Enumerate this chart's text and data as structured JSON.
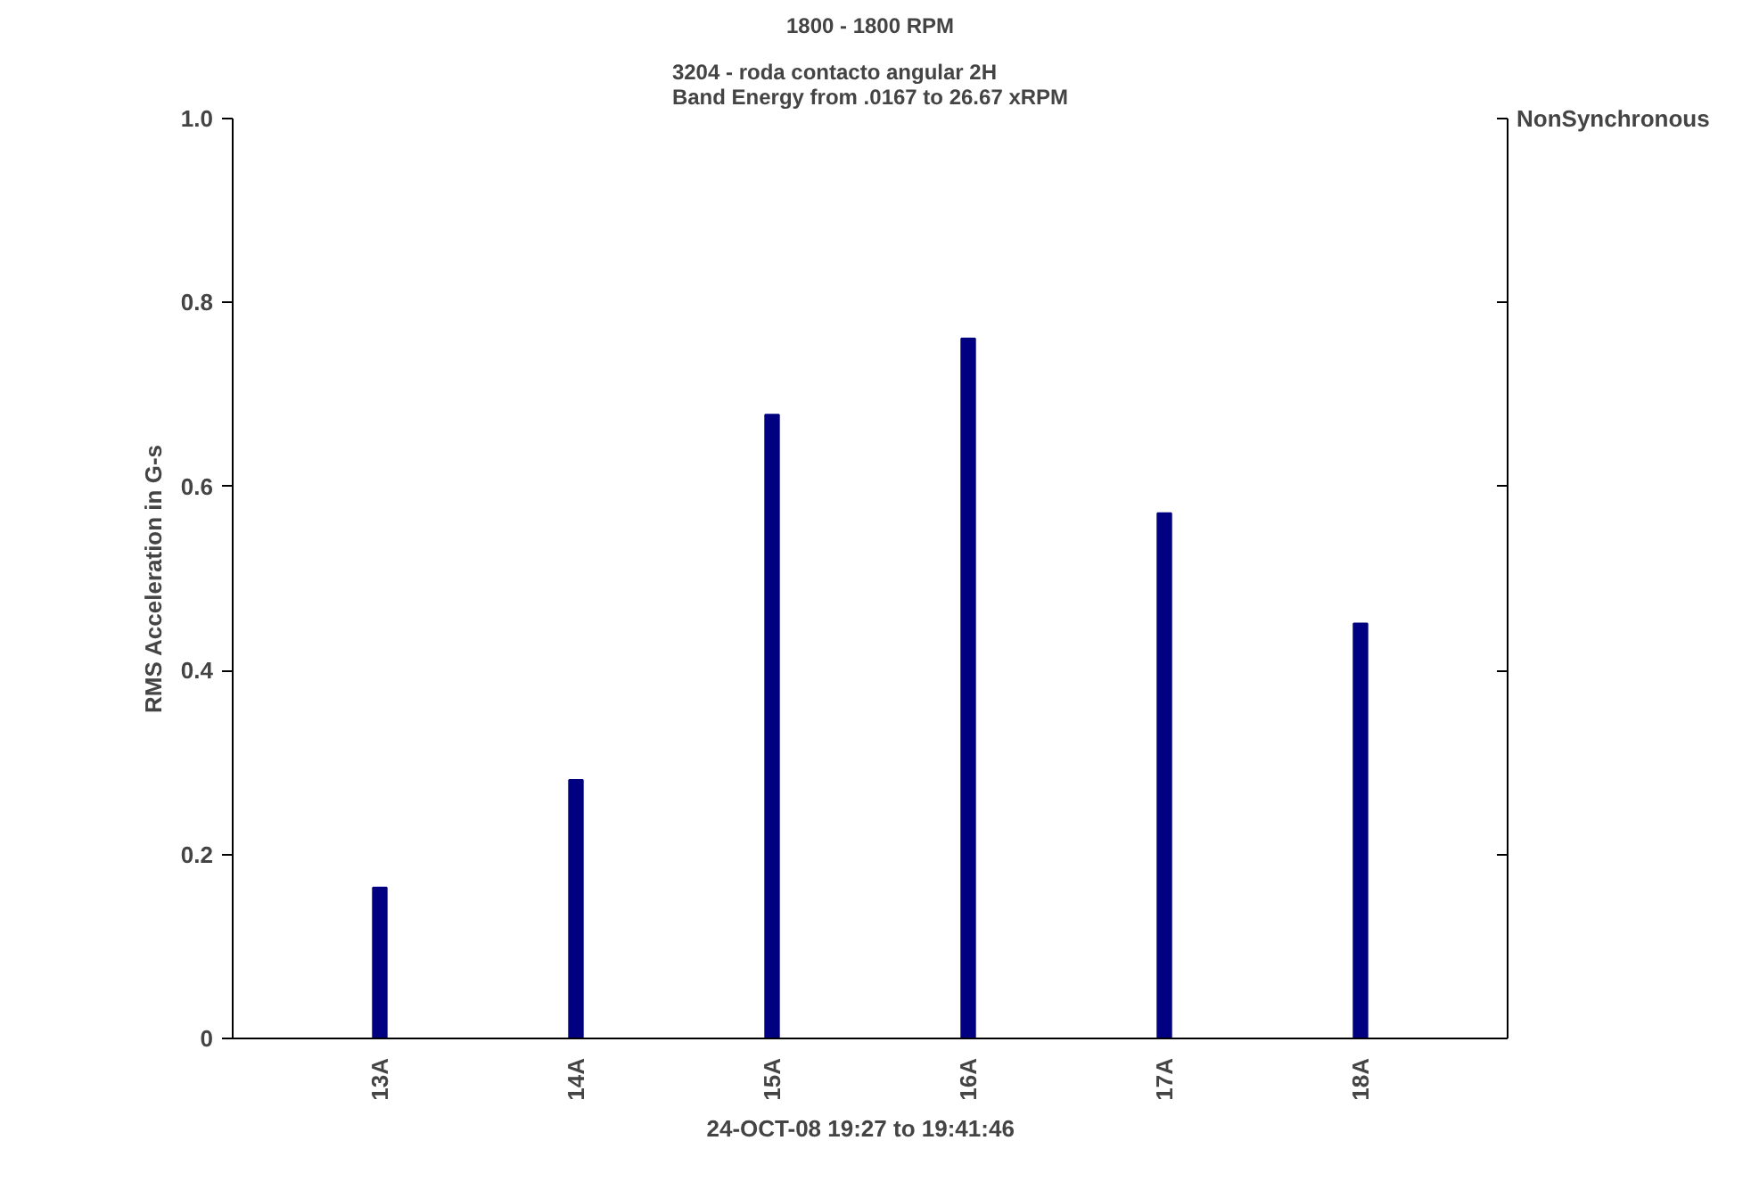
{
  "chart_data": {
    "type": "bar",
    "title": "1800 - 1800 RPM",
    "subtitle": "3204 - roda contacto angular 2H\nBand Energy from .0167 to 26.67 xRPM",
    "xlabel": "24-OCT-08  19:27  to  19:41:46",
    "ylabel": "RMS Acceleration in G-s",
    "categories": [
      "13A",
      "14A",
      "15A",
      "16A",
      "17A",
      "18A"
    ],
    "values": [
      0.164,
      0.281,
      0.678,
      0.761,
      0.571,
      0.451
    ],
    "color": "#000080",
    "ylim": [
      0,
      1.0
    ],
    "yticks": [
      {
        "value": 0,
        "label": "0"
      },
      0.2,
      0.4,
      0.6,
      0.8,
      {
        "value": 1.0,
        "label": "1.0"
      }
    ],
    "grid": false,
    "annotations": [
      "NonSynchronous"
    ]
  }
}
